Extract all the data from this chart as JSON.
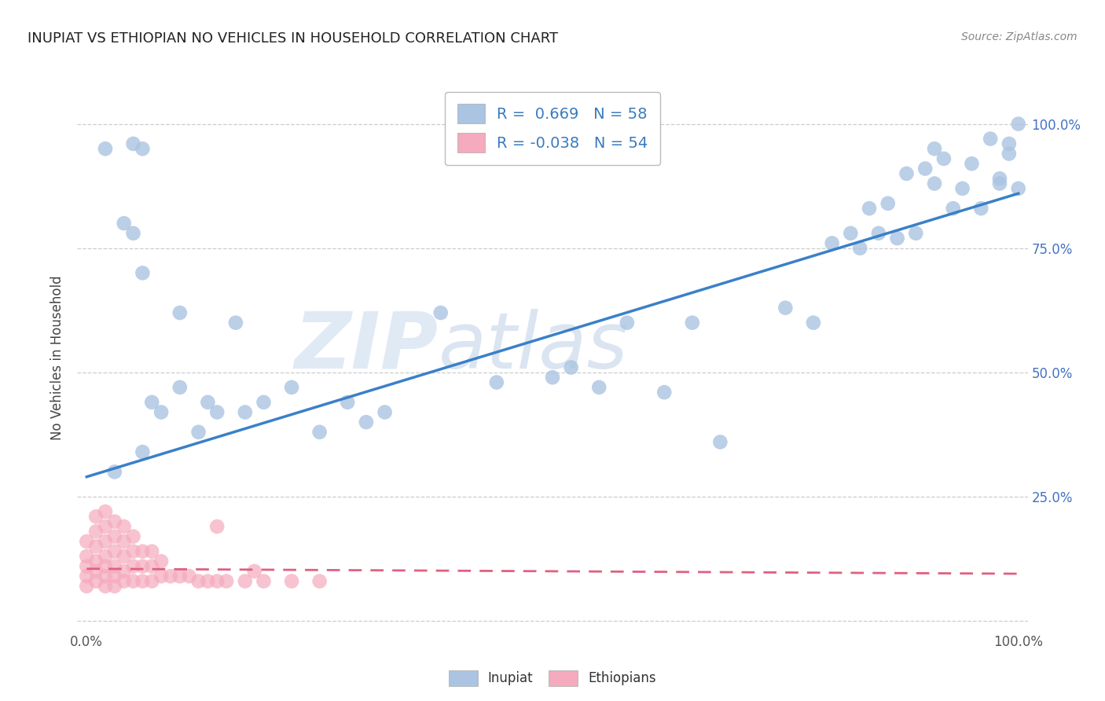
{
  "title": "INUPIAT VS ETHIOPIAN NO VEHICLES IN HOUSEHOLD CORRELATION CHART",
  "source": "Source: ZipAtlas.com",
  "ylabel": "No Vehicles in Household",
  "inupiat_R": "0.669",
  "inupiat_N": "58",
  "ethiopian_R": "-0.038",
  "ethiopian_N": "54",
  "inupiat_color": "#aac4e2",
  "ethiopian_color": "#f5aabe",
  "inupiat_line_color": "#3a80c8",
  "ethiopian_line_color": "#e06080",
  "background_color": "#ffffff",
  "watermark_zip": "ZIP",
  "watermark_atlas": "atlas",
  "inupiat_x": [
    0.02,
    0.04,
    0.05,
    0.05,
    0.06,
    0.06,
    0.07,
    0.08,
    0.1,
    0.1,
    0.12,
    0.13,
    0.14,
    0.16,
    0.17,
    0.19,
    0.22,
    0.25,
    0.28,
    0.3,
    0.32,
    0.38,
    0.44,
    0.5,
    0.52,
    0.55,
    0.58,
    0.62,
    0.65,
    0.68,
    0.75,
    0.78,
    0.8,
    0.82,
    0.83,
    0.84,
    0.85,
    0.86,
    0.87,
    0.88,
    0.89,
    0.9,
    0.91,
    0.91,
    0.92,
    0.93,
    0.94,
    0.95,
    0.96,
    0.97,
    0.98,
    0.99,
    1.0,
    0.98,
    0.99,
    1.0,
    0.03,
    0.06
  ],
  "inupiat_y": [
    0.95,
    0.8,
    0.96,
    0.78,
    0.95,
    0.7,
    0.44,
    0.42,
    0.47,
    0.62,
    0.38,
    0.44,
    0.42,
    0.6,
    0.42,
    0.44,
    0.47,
    0.38,
    0.44,
    0.4,
    0.42,
    0.62,
    0.48,
    0.49,
    0.51,
    0.47,
    0.6,
    0.46,
    0.6,
    0.36,
    0.63,
    0.6,
    0.76,
    0.78,
    0.75,
    0.83,
    0.78,
    0.84,
    0.77,
    0.9,
    0.78,
    0.91,
    0.95,
    0.88,
    0.93,
    0.83,
    0.87,
    0.92,
    0.83,
    0.97,
    0.89,
    0.96,
    1.0,
    0.88,
    0.94,
    0.87,
    0.3,
    0.34
  ],
  "ethiopian_x": [
    0.0,
    0.0,
    0.0,
    0.0,
    0.0,
    0.01,
    0.01,
    0.01,
    0.01,
    0.01,
    0.01,
    0.02,
    0.02,
    0.02,
    0.02,
    0.02,
    0.02,
    0.02,
    0.03,
    0.03,
    0.03,
    0.03,
    0.03,
    0.03,
    0.04,
    0.04,
    0.04,
    0.04,
    0.04,
    0.05,
    0.05,
    0.05,
    0.05,
    0.06,
    0.06,
    0.06,
    0.07,
    0.07,
    0.07,
    0.08,
    0.08,
    0.09,
    0.1,
    0.11,
    0.12,
    0.13,
    0.14,
    0.15,
    0.17,
    0.19,
    0.22,
    0.25,
    0.14,
    0.18
  ],
  "ethiopian_y": [
    0.07,
    0.09,
    0.11,
    0.13,
    0.16,
    0.08,
    0.1,
    0.12,
    0.15,
    0.18,
    0.21,
    0.07,
    0.09,
    0.11,
    0.13,
    0.16,
    0.19,
    0.22,
    0.07,
    0.09,
    0.11,
    0.14,
    0.17,
    0.2,
    0.08,
    0.1,
    0.13,
    0.16,
    0.19,
    0.08,
    0.11,
    0.14,
    0.17,
    0.08,
    0.11,
    0.14,
    0.08,
    0.11,
    0.14,
    0.09,
    0.12,
    0.09,
    0.09,
    0.09,
    0.08,
    0.08,
    0.08,
    0.08,
    0.08,
    0.08,
    0.08,
    0.08,
    0.19,
    0.1
  ],
  "xlim": [
    0.0,
    1.0
  ],
  "ylim": [
    -0.02,
    1.08
  ],
  "inupiat_line_x": [
    0.0,
    1.0
  ],
  "inupiat_line_y": [
    0.29,
    0.86
  ],
  "ethiopian_line_x": [
    0.0,
    1.0
  ],
  "ethiopian_line_y": [
    0.105,
    0.095
  ]
}
